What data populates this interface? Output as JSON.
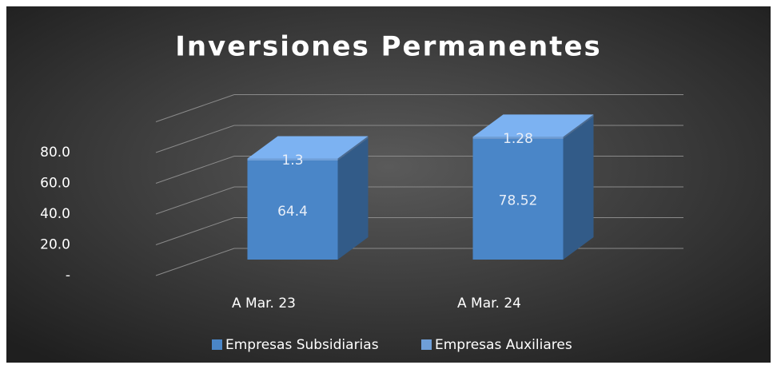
{
  "chart_data": {
    "type": "bar3d_stacked",
    "title": "Inversiones Permanentes",
    "categories": [
      "A Mar. 23",
      "A Mar. 24"
    ],
    "series": [
      {
        "name": "Empresas Subsidiarias",
        "color": "#4a86c8",
        "values": [
          64.4,
          78.52
        ]
      },
      {
        "name": "Empresas Auxiliares",
        "color": "#6f9fd8",
        "values": [
          1.3,
          1.28
        ]
      }
    ],
    "ylim": [
      0,
      100
    ],
    "yticks": [
      {
        "value": 0,
        "label": "-"
      },
      {
        "value": 20,
        "label": "20.0"
      },
      {
        "value": 40,
        "label": "40.0"
      },
      {
        "value": 60,
        "label": "60.0"
      },
      {
        "value": 80,
        "label": "80.0"
      }
    ],
    "grid": true,
    "legend": "bottom"
  }
}
